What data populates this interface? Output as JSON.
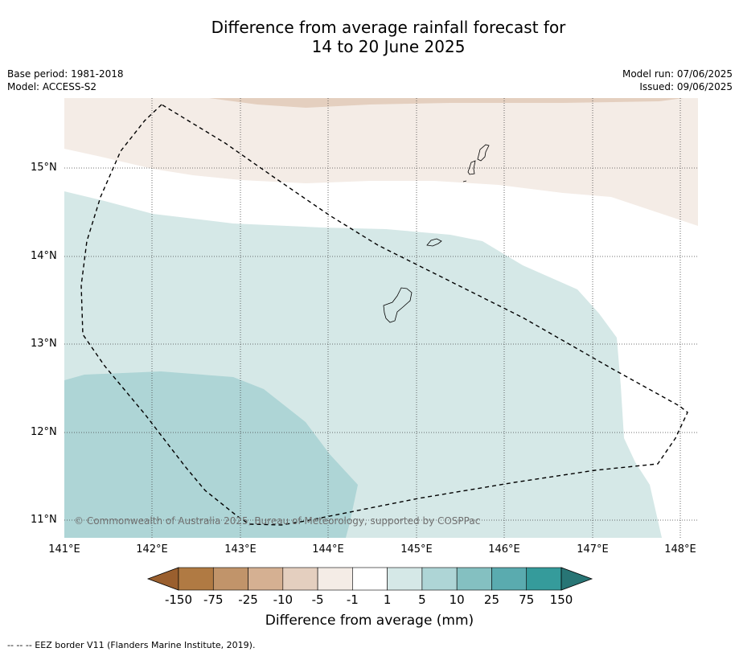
{
  "title_line1": "Difference from average rainfall forecast for",
  "title_line2": "14 to 20 June 2025",
  "base_period": "Base period: 1981-2018",
  "model": "Model: ACCESS-S2",
  "model_run": "Model run: 07/06/2025",
  "issued": "Issued: 09/06/2025",
  "lat_labels": [
    "15°N",
    "14°N",
    "13°N",
    "12°N",
    "11°N"
  ],
  "lon_labels": [
    "141°E",
    "142°E",
    "143°E",
    "144°E",
    "145°E",
    "146°E",
    "147°E",
    "148°E"
  ],
  "copyright": "© Commonwealth of Australia 2025, Bureau of Meteorology, supported by COSPPac",
  "colorbar": {
    "labels": [
      "-150",
      "-75",
      "-25",
      "-10",
      "-5",
      "-1",
      "1",
      "5",
      "10",
      "25",
      "75",
      "150"
    ],
    "colors": [
      "#9a5f2e",
      "#b07a43",
      "#c1946a",
      "#d5b092",
      "#e4cfbf",
      "#f4ece6",
      "#ffffff",
      "#d5e8e7",
      "#aed5d6",
      "#84c0c1",
      "#5aabaf",
      "#359b9b",
      "#287575"
    ],
    "title": "Difference from average (mm)"
  },
  "footnote": "--  --  -- EEZ border V11 (Flanders Marine Institute, 2019).",
  "legend_colors": {
    "brown_light": "#f4ece6",
    "brown_mid": "#e4cfbf",
    "teal_light": "#d5e8e7",
    "teal_mid": "#aed5d6"
  }
}
